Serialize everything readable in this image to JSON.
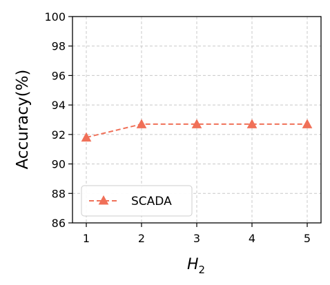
{
  "chart_data": {
    "type": "line",
    "x": [
      1,
      2,
      3,
      4,
      5
    ],
    "series": [
      {
        "name": "SCADA",
        "values": [
          91.8,
          92.7,
          92.7,
          92.7,
          92.7
        ],
        "color": "#f07058",
        "marker": "triangle",
        "line_style": "dashed"
      }
    ],
    "ylabel": "Accuracy(%)",
    "xlabel_main": "H",
    "xlabel_sub": "2",
    "xlim": [
      0.75,
      5.25
    ],
    "ylim": [
      86,
      100
    ],
    "x_ticks": [
      "1",
      "2",
      "3",
      "4",
      "5"
    ],
    "y_ticks": [
      "86",
      "88",
      "90",
      "92",
      "94",
      "96",
      "98",
      "100"
    ],
    "grid": true,
    "legend_position": "lower-left"
  }
}
